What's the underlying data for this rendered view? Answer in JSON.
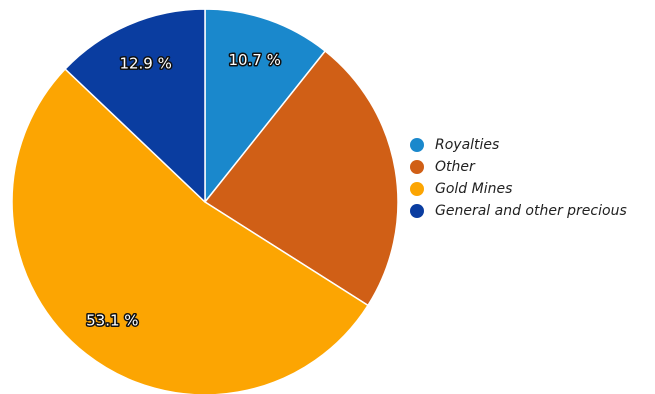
{
  "chart_data": {
    "type": "pie",
    "slices": [
      {
        "name": "Royalties",
        "value": 10.7,
        "label": "10.7 %",
        "color": "#1a88cc"
      },
      {
        "name": "Other",
        "value": 23.3,
        "label": "",
        "color": "#d05f16"
      },
      {
        "name": "Gold Mines",
        "value": 53.1,
        "label": "53.1 %",
        "color": "#fca502"
      },
      {
        "name": "General and other precious",
        "value": 12.9,
        "label": "12.9 %",
        "color": "#0a3da0"
      }
    ],
    "legend": {
      "placement": "right",
      "items": [
        "Royalties",
        "Other",
        "Gold Mines",
        "General and other precious"
      ]
    }
  }
}
